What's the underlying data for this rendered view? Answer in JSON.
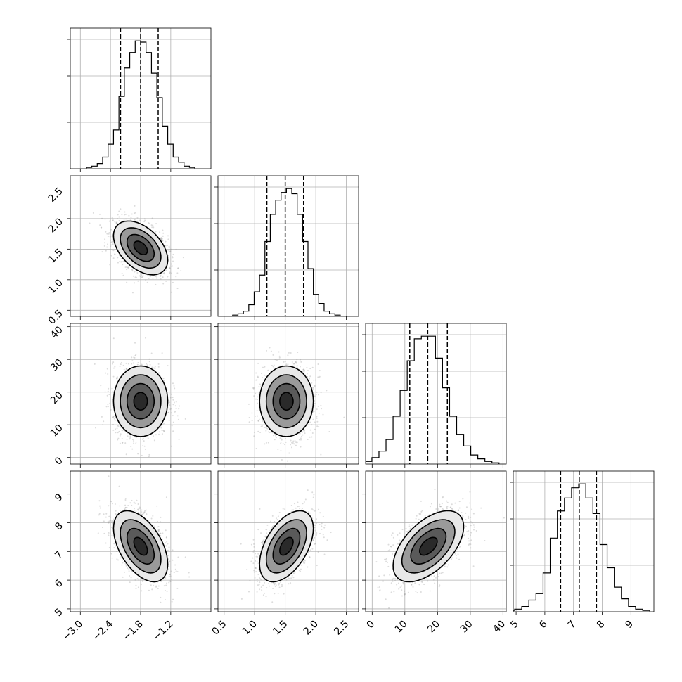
{
  "chart_data": {
    "type": "corner",
    "parameters": [
      {
        "range": [
          -3.2,
          -0.4
        ],
        "ticks": [
          -3.0,
          -2.4,
          -1.8,
          -1.2
        ],
        "tick_labels": [
          "−3.0",
          "−2.4",
          "−1.8",
          "−1.2"
        ],
        "mean": -1.8,
        "sd": 0.27,
        "quantiles": [
          -2.2,
          -1.8,
          -1.45
        ],
        "hist_counts": [
          1,
          2,
          4,
          9,
          19,
          30,
          56,
          78,
          90,
          99,
          98,
          90,
          74,
          55,
          33,
          19,
          9,
          5,
          2,
          1
        ]
      },
      {
        "range": [
          0.4,
          2.7
        ],
        "ticks": [
          0.5,
          1.0,
          1.5,
          2.0,
          2.5
        ],
        "tick_labels": [
          "0.5",
          "1.0",
          "1.5",
          "2.0",
          "2.5"
        ],
        "mean": 1.52,
        "sd": 0.22,
        "quantiles": [
          1.2,
          1.5,
          1.8
        ],
        "hist_counts": [
          1,
          2,
          4,
          9,
          19,
          32,
          58,
          79,
          90,
          96,
          99,
          95,
          79,
          58,
          37,
          17,
          10,
          4,
          2,
          1
        ]
      },
      {
        "range": [
          -2,
          41
        ],
        "ticks": [
          0,
          10,
          20,
          30,
          40
        ],
        "tick_labels": [
          "0",
          "10",
          "20",
          "30",
          "40"
        ],
        "mean": 17.2,
        "sd": 5.4,
        "quantiles": [
          11.5,
          17,
          23
        ],
        "hist_counts": [
          1,
          2,
          5,
          10,
          19,
          37,
          57,
          80,
          97,
          99,
          99,
          82,
          59,
          37,
          23,
          14,
          7,
          4,
          2,
          1
        ]
      },
      {
        "range": [
          4.9,
          9.8
        ],
        "ticks": [
          5,
          6,
          7,
          8,
          9
        ],
        "tick_labels": [
          "5",
          "6",
          "7",
          "8",
          "9"
        ],
        "mean": 7.18,
        "sd": 0.62,
        "quantiles": [
          6.55,
          7.2,
          7.8
        ],
        "hist_counts": [
          1,
          2,
          4,
          9,
          14,
          30,
          57,
          78,
          88,
          96,
          99,
          88,
          76,
          52,
          34,
          19,
          10,
          4,
          2,
          1
        ]
      }
    ],
    "correlations": [
      [
        1.0,
        -0.45,
        0.0,
        -0.5
      ],
      [
        -0.45,
        1.0,
        0.0,
        0.5
      ],
      [
        0.0,
        0.0,
        1.0,
        0.55
      ],
      [
        -0.5,
        0.5,
        0.55,
        1.0
      ]
    ],
    "contour_levels_sigma": [
      0.5,
      1.0,
      1.5,
      2.0
    ],
    "grid": true,
    "legend": "none"
  }
}
